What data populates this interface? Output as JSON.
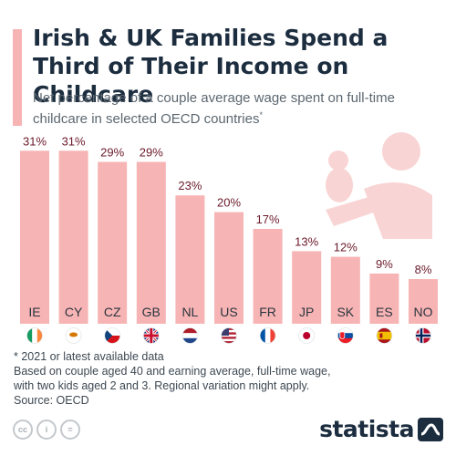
{
  "title": "Irish & UK Families Spend a Third of Their Income on Childcare",
  "subtitle": "Net percentage of a couple average wage spent on full-time childcare in selected OECD countries",
  "subtitle_mark": "*",
  "chart_data": {
    "type": "bar",
    "title": "",
    "xlabel": "",
    "ylabel": "",
    "ylim": [
      0,
      35
    ],
    "grid": false,
    "categories": [
      "IE",
      "CY",
      "CZ",
      "GB",
      "NL",
      "US",
      "FR",
      "JP",
      "SK",
      "ES",
      "NO"
    ],
    "values": [
      31,
      31,
      29,
      29,
      23,
      20,
      17,
      13,
      12,
      9,
      8
    ],
    "value_labels": [
      "31%",
      "31%",
      "29%",
      "29%",
      "23%",
      "20%",
      "17%",
      "13%",
      "12%",
      "9%",
      "8%"
    ],
    "bar_color": "#f7b4b4",
    "label_color": "#6b1a2a",
    "category_color": "#2b3540"
  },
  "flags": [
    "ireland-flag-icon",
    "cyprus-flag-icon",
    "czechia-flag-icon",
    "uk-flag-icon",
    "netherlands-flag-icon",
    "usa-flag-icon",
    "france-flag-icon",
    "japan-flag-icon",
    "slovakia-flag-icon",
    "spain-flag-icon",
    "norway-flag-icon"
  ],
  "notes": {
    "note1": "* 2021 or latest available data",
    "note2": "Based on couple aged 40 and earning average, full-time wage,",
    "note3": "with two kids aged 2 and 3. Regional variation might apply.",
    "source": "Source: OECD"
  },
  "footer": {
    "license_icons": [
      "cc-icon",
      "by-icon",
      "nd-icon"
    ],
    "license_labels": [
      "cc",
      "i",
      "="
    ],
    "logo": "statista"
  },
  "colors": {
    "accent": "#f7b4b4",
    "title": "#1c2d3f",
    "illustration": "#f9d4d4"
  }
}
